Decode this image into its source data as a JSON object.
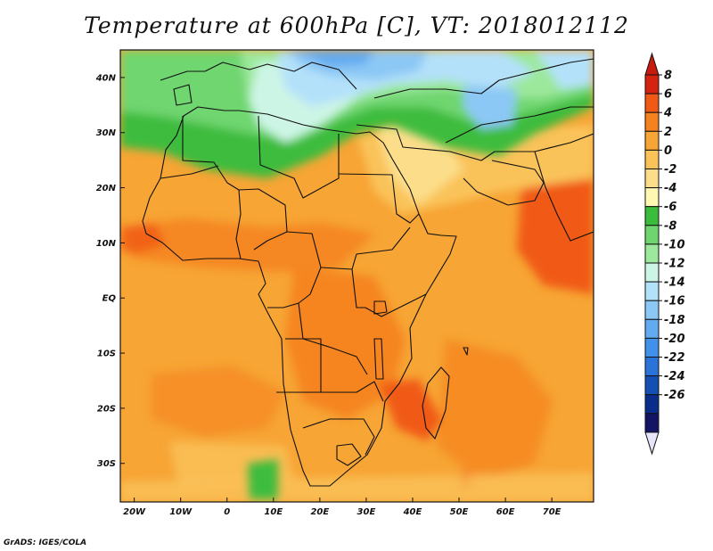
{
  "title": "Temperature at 600hPa [C], VT: 2018012112",
  "credit": "GrADS: IGES/COLA",
  "map": {
    "projection": "lat-lon",
    "lon_range": [
      -23,
      79
    ],
    "lat_range": [
      -37,
      45
    ],
    "lat_ticks": [
      {
        "lat": 40,
        "label": "40N"
      },
      {
        "lat": 30,
        "label": "30N"
      },
      {
        "lat": 20,
        "label": "20N"
      },
      {
        "lat": 10,
        "label": "10N"
      },
      {
        "lat": 0,
        "label": "EQ"
      },
      {
        "lat": -10,
        "label": "10S"
      },
      {
        "lat": -20,
        "label": "20S"
      },
      {
        "lat": -30,
        "label": "30S"
      }
    ],
    "lon_ticks": [
      {
        "lon": -20,
        "label": "20W"
      },
      {
        "lon": -10,
        "label": "10W"
      },
      {
        "lon": 0,
        "label": "0"
      },
      {
        "lon": 10,
        "label": "10E"
      },
      {
        "lon": 20,
        "label": "20E"
      },
      {
        "lon": 30,
        "label": "30E"
      },
      {
        "lon": 40,
        "label": "40E"
      },
      {
        "lon": 50,
        "label": "50E"
      },
      {
        "lon": 60,
        "label": "60E"
      },
      {
        "lon": 70,
        "label": "70E"
      }
    ]
  },
  "colorbar": {
    "labels": [
      "8",
      "6",
      "4",
      "2",
      "0",
      "-2",
      "-4",
      "-6",
      "-8",
      "-10",
      "-12",
      "-14",
      "-16",
      "-18",
      "-20",
      "-22",
      "-24",
      "-26"
    ],
    "colors": [
      "#d62210",
      "#f05a14",
      "#f5821e",
      "#f7a535",
      "#fac35a",
      "#fcde8a",
      "#fff7b2",
      "#3cbc3c",
      "#6fd66f",
      "#9ce89c",
      "#cdf5e6",
      "#b4e1fa",
      "#8cc8f5",
      "#64aaf0",
      "#4190eb",
      "#2a73d8",
      "#1450b4",
      "#0a2d8c",
      "#141464"
    ],
    "over_color": "#c81a0e",
    "under_color": "#e6e4fb"
  }
}
